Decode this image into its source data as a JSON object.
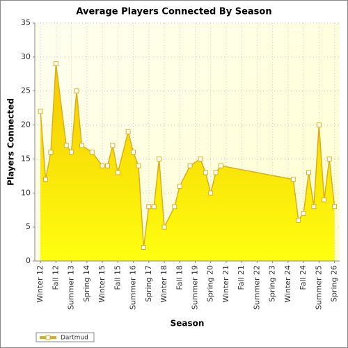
{
  "chart_data": {
    "type": "area",
    "title": "Average Players Connected By Season",
    "x_label": "Season",
    "y_label": "Players Connected",
    "x": [
      0,
      1,
      2,
      3,
      5,
      6,
      7,
      8,
      10,
      12,
      13,
      14,
      15,
      17,
      18,
      19,
      20,
      21,
      22,
      23,
      24,
      26,
      27,
      29,
      31,
      32,
      33,
      34,
      35,
      49,
      50,
      51,
      52,
      53,
      54,
      55,
      56,
      57
    ],
    "series": [
      {
        "name": "Dartmud",
        "color": "#dcae1d",
        "values": [
          22,
          12,
          16,
          29,
          17,
          16,
          25,
          17,
          16,
          14,
          14,
          17,
          13,
          19,
          16,
          14,
          2,
          8,
          8,
          15,
          5,
          8,
          11,
          14,
          15,
          13,
          10,
          13,
          14,
          12,
          6,
          7,
          13,
          8,
          20,
          9,
          15,
          8
        ]
      }
    ],
    "xlim": [
      -1.1,
      58
    ],
    "xticks": [
      {
        "value": 0,
        "label": "Winter 12"
      },
      {
        "value": 3,
        "label": "Fall 12"
      },
      {
        "value": 6,
        "label": "Summer 13"
      },
      {
        "value": 9,
        "label": "Spring 14"
      },
      {
        "value": 12,
        "label": "Winter 15"
      },
      {
        "value": 15,
        "label": "Fall 15"
      },
      {
        "value": 18,
        "label": "Summer 16"
      },
      {
        "value": 21,
        "label": "Spring 17"
      },
      {
        "value": 24,
        "label": "Winter 18"
      },
      {
        "value": 27,
        "label": "Fall 18"
      },
      {
        "value": 30,
        "label": "Summer 19"
      },
      {
        "value": 33,
        "label": "Spring 20"
      },
      {
        "value": 36,
        "label": "Winter 21"
      },
      {
        "value": 39,
        "label": "Fall 21"
      },
      {
        "value": 42,
        "label": "Summer 22"
      },
      {
        "value": 45,
        "label": "Spring 23"
      },
      {
        "value": 48,
        "label": "Winter 24"
      },
      {
        "value": 51,
        "label": "Fall 24"
      },
      {
        "value": 54,
        "label": "Summer 25"
      },
      {
        "value": 57,
        "label": "Spring 26"
      }
    ],
    "ylim": [
      0,
      35
    ],
    "yticks": [
      0,
      5,
      10,
      15,
      20,
      25,
      30,
      35
    ],
    "grid": true
  }
}
